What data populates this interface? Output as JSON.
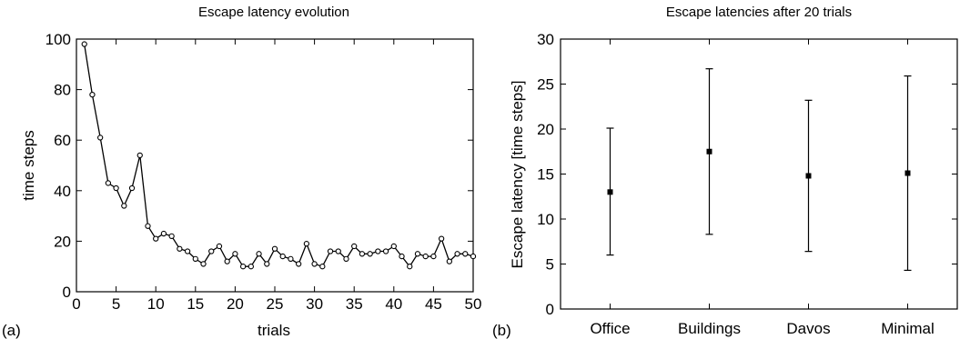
{
  "chart_data": [
    {
      "type": "line",
      "panel_label": "(a)",
      "title": "Escape latency evolution",
      "xlabel": "trials",
      "ylabel": "time steps",
      "xlim": [
        0,
        50
      ],
      "ylim": [
        0,
        100
      ],
      "xticks": [
        0,
        5,
        10,
        15,
        20,
        25,
        30,
        35,
        40,
        45,
        50
      ],
      "yticks": [
        0,
        20,
        40,
        60,
        80,
        100
      ],
      "grid": false,
      "marker": "circle",
      "x": [
        1,
        2,
        3,
        4,
        5,
        6,
        7,
        8,
        9,
        10,
        11,
        12,
        13,
        14,
        15,
        16,
        17,
        18,
        19,
        20,
        21,
        22,
        23,
        24,
        25,
        26,
        27,
        28,
        29,
        30,
        31,
        32,
        33,
        34,
        35,
        36,
        37,
        38,
        39,
        40,
        41,
        42,
        43,
        44,
        45,
        46,
        47,
        48,
        49,
        50
      ],
      "y": [
        98,
        78,
        61,
        43,
        41,
        34,
        41,
        54,
        26,
        21,
        23,
        22,
        17,
        16,
        13,
        11,
        16,
        18,
        12,
        15,
        10,
        10,
        15,
        11,
        17,
        14,
        13,
        11,
        19,
        11,
        10,
        16,
        16,
        13,
        18,
        15,
        15,
        16,
        16,
        18,
        14,
        10,
        15,
        14,
        14,
        21,
        12,
        15,
        15,
        14
      ]
    },
    {
      "type": "errorbar",
      "panel_label": "(b)",
      "title": "Escape latencies after 20 trials",
      "xlabel": "",
      "ylabel": "Escape latency [time steps]",
      "ylim": [
        0,
        30
      ],
      "yticks": [
        0,
        5,
        10,
        15,
        20,
        25,
        30
      ],
      "grid": false,
      "categories": [
        "Office",
        "Buildings",
        "Davos",
        "Minimal"
      ],
      "values": [
        13.0,
        17.5,
        14.8,
        15.1
      ],
      "lower": [
        6.0,
        8.3,
        6.4,
        4.3
      ],
      "upper": [
        20.1,
        26.7,
        23.2,
        25.9
      ]
    }
  ]
}
